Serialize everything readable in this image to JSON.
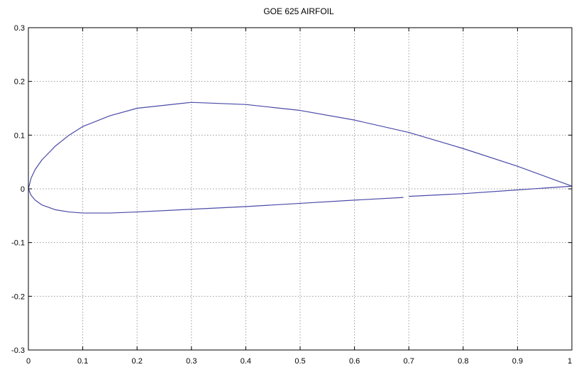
{
  "chart_data": {
    "type": "line",
    "title": "GOE 625 AIRFOIL",
    "xlabel": "",
    "ylabel": "",
    "xlim": [
      0,
      1
    ],
    "ylim": [
      -0.3,
      0.3
    ],
    "x_ticks": [
      0,
      0.1,
      0.2,
      0.3,
      0.4,
      0.5,
      0.6,
      0.7,
      0.8,
      0.9,
      1
    ],
    "x_tick_labels": [
      "0",
      "0.1",
      "0.2",
      "0.3",
      "0.4",
      "0.5",
      "0.6",
      "0.7",
      "0.8",
      "0.9",
      "1"
    ],
    "y_ticks": [
      -0.3,
      -0.2,
      -0.1,
      0,
      0.1,
      0.2,
      0.3
    ],
    "y_tick_labels": [
      "-0.3",
      "-0.2",
      "-0.1",
      "0",
      "0.1",
      "0.2",
      "0.3"
    ],
    "grid": true,
    "series_color": "#4a4aa8",
    "series": [
      {
        "x": [
          1.0,
          0.9,
          0.8,
          0.7,
          0.6,
          0.5,
          0.4,
          0.3,
          0.2,
          0.15,
          0.1,
          0.075,
          0.05,
          0.025,
          0.0125,
          0.005,
          0.0
        ],
        "y": [
          0.005,
          0.042,
          0.075,
          0.105,
          0.128,
          0.146,
          0.157,
          0.161,
          0.15,
          0.136,
          0.116,
          0.1,
          0.08,
          0.054,
          0.036,
          0.02,
          0.0
        ]
      },
      {
        "x": [
          0.0,
          0.005,
          0.0125,
          0.025,
          0.05,
          0.075,
          0.1,
          0.15,
          0.2,
          0.3,
          0.4,
          0.5,
          0.6,
          0.69
        ],
        "y": [
          0.0,
          -0.012,
          -0.021,
          -0.03,
          -0.039,
          -0.043,
          -0.045,
          -0.045,
          -0.043,
          -0.038,
          -0.033,
          -0.027,
          -0.021,
          -0.016
        ]
      },
      {
        "x": [
          0.7,
          0.8,
          0.9,
          1.0
        ],
        "y": [
          -0.014,
          -0.009,
          -0.002,
          0.005
        ]
      }
    ]
  }
}
